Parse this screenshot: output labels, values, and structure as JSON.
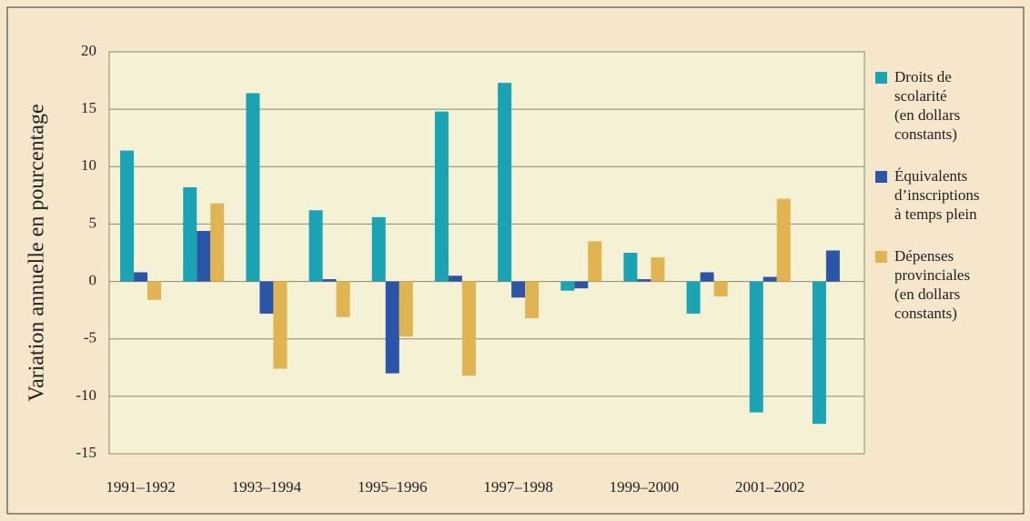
{
  "chart_data": {
    "type": "bar",
    "y_label": "Variation annuelle en pourcentage",
    "categories": [
      "1991–1992",
      null,
      "1993–1994",
      null,
      "1995–1996",
      null,
      "1997–1998",
      null,
      "1999–2000",
      null,
      "2001–2002",
      null
    ],
    "series": [
      {
        "name": "Droits de\nscolarité\n(en dollars\nconstants)",
        "color": "#1aa3b4",
        "values": [
          11.4,
          8.2,
          16.4,
          6.2,
          5.6,
          14.8,
          17.3,
          -0.8,
          2.5,
          -2.8,
          -11.4,
          -12.4
        ]
      },
      {
        "name": "Équivalents\nd’inscriptions\nà temps plein",
        "color": "#2b55a8",
        "values": [
          0.8,
          4.4,
          -2.8,
          0.2,
          -8.0,
          0.5,
          -1.4,
          -0.6,
          0.2,
          0.8,
          0.4,
          2.7
        ]
      },
      {
        "name": "Dépenses\nprovinciales\n(en dollars\nconstants)",
        "color": "#e0b450",
        "values": [
          -1.6,
          6.8,
          -7.6,
          -3.1,
          -4.8,
          -8.2,
          -3.2,
          3.5,
          2.1,
          -1.3,
          7.2,
          null
        ]
      }
    ],
    "ylim": [
      -15,
      20
    ],
    "yticks": [
      20,
      15,
      10,
      5,
      0,
      -5,
      -10,
      -15
    ],
    "grid": true,
    "legend": "right"
  }
}
